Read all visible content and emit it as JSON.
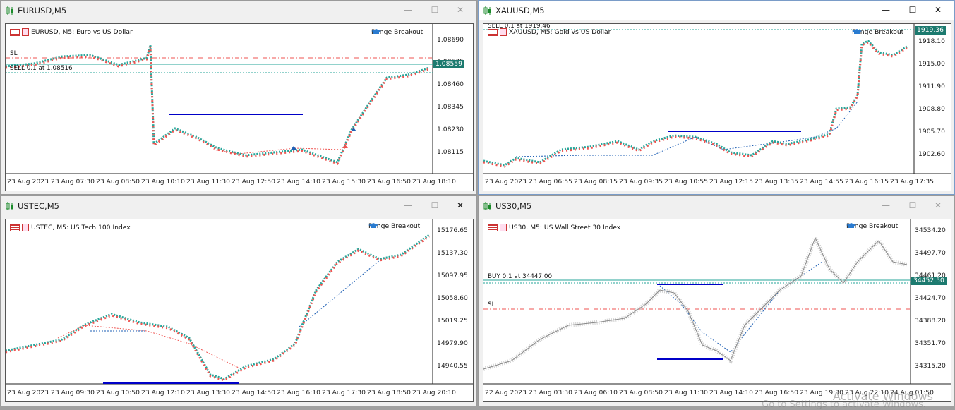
{
  "windows": [
    {
      "id": "eurusd",
      "title": "EURUSD,M5",
      "info": "EURUSD, M5:  Euro vs US Dollar",
      "ea": "Range Breakout",
      "prices": [
        "1.08690",
        "1.08575",
        "1.08460",
        "1.08345",
        "1.08230",
        "1.08115"
      ],
      "current_price": "1.08559",
      "times": [
        "23 Aug 2023",
        "23 Aug 07:30",
        "23 Aug 08:50",
        "23 Aug 10:10",
        "23 Aug 11:30",
        "23 Aug 12:50",
        "23 Aug 14:10",
        "23 Aug 15:30",
        "23 Aug 16:50",
        "23 Aug 18:10"
      ],
      "labels": {
        "sl": "SL",
        "order": "SELL 0.1 at 1.08516"
      }
    },
    {
      "id": "xauusd",
      "title": "XAUUSD,M5",
      "info": "XAUUSD, M5:  Gold vs US Dollar",
      "ea": "Range Breakout",
      "prices": [
        "1918.10",
        "1915.00",
        "1911.90",
        "1908.80",
        "1905.70",
        "1902.60"
      ],
      "current_price": "1919.36",
      "times": [
        "23 Aug 2023",
        "23 Aug 06:55",
        "23 Aug 08:15",
        "23 Aug 09:35",
        "23 Aug 10:55",
        "23 Aug 12:15",
        "23 Aug 13:35",
        "23 Aug 14:55",
        "23 Aug 16:15",
        "23 Aug 17:35"
      ],
      "labels": {
        "order": "SELL 0.1 at 1919.46"
      }
    },
    {
      "id": "ustec",
      "title": "USTEC,M5",
      "info": "USTEC, M5:  US Tech 100 Index",
      "ea": "Range Breakout",
      "prices": [
        "15176.65",
        "15137.30",
        "15097.95",
        "15058.60",
        "15019.25",
        "14979.90",
        "14940.55"
      ],
      "times": [
        "23 Aug 2023",
        "23 Aug 09:30",
        "23 Aug 10:50",
        "23 Aug 12:10",
        "23 Aug 13:30",
        "23 Aug 14:50",
        "23 Aug 16:10",
        "23 Aug 17:30",
        "23 Aug 18:50",
        "23 Aug 20:10"
      ]
    },
    {
      "id": "us30",
      "title": "US30,M5",
      "info": "US30, M5:  US Wall Street 30 Index",
      "ea": "Range Breakout",
      "prices": [
        "34534.20",
        "34497.70",
        "34461.20",
        "34424.70",
        "34388.20",
        "34351.70",
        "34315.20"
      ],
      "current_price": "34452.50",
      "times": [
        "22 Aug 2023",
        "23 Aug 03:30",
        "23 Aug 06:10",
        "23 Aug 08:50",
        "23 Aug 11:30",
        "23 Aug 14:10",
        "23 Aug 16:50",
        "23 Aug 19:30",
        "23 Aug 22:10",
        "24 Aug 01:50"
      ],
      "labels": {
        "sl": "SL",
        "order": "BUY 0.1 at 34447.00"
      }
    }
  ],
  "buttons": {
    "minimize": "—",
    "maximize": "☐",
    "close": "✕"
  },
  "watermark": {
    "line1": "Activate Windows",
    "line2": "Go to Settings to activate Windows."
  },
  "colors": {
    "bull": "#26a69a",
    "bear": "#ef5350",
    "range": "#0000c8",
    "tag": "#1c7a6f"
  }
}
